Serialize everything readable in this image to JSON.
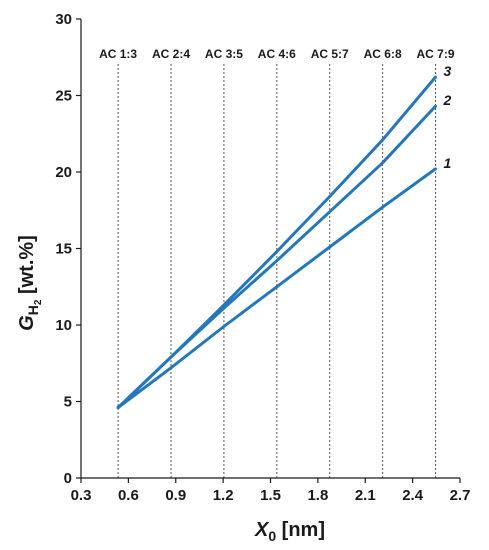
{
  "chart_data": {
    "type": "line",
    "xlabel": {
      "symbol": "X",
      "subscript": "0",
      "unit": " [nm]"
    },
    "ylabel": {
      "symbol": "G",
      "subscript": "H",
      "subsub": "2",
      "unit": " [wt.%]"
    },
    "xlim": [
      0.3,
      2.7
    ],
    "ylim": [
      0,
      30
    ],
    "xticks": [
      "0.3",
      "0.6",
      "0.9",
      "1.2",
      "1.5",
      "1.8",
      "2.1",
      "2.4",
      "2.7"
    ],
    "yticks": [
      "0",
      "5",
      "10",
      "15",
      "20",
      "25",
      "30"
    ],
    "grid": false,
    "line_color": "#2577bd",
    "reference_lines": [
      {
        "label": "AC 1:3",
        "x": 0.535
      },
      {
        "label": "AC 2:4",
        "x": 0.87
      },
      {
        "label": "AC 3:5",
        "x": 1.205
      },
      {
        "label": "AC 4:6",
        "x": 1.54
      },
      {
        "label": "AC 5:7",
        "x": 1.875
      },
      {
        "label": "AC 6:8",
        "x": 2.21
      },
      {
        "label": "AC 7:9",
        "x": 2.545
      }
    ],
    "series": [
      {
        "name": "1",
        "x": [
          0.535,
          0.87,
          1.205,
          1.54,
          1.875,
          2.21,
          2.545
        ],
        "y": [
          4.6,
          7.2,
          9.9,
          12.5,
          15.1,
          17.7,
          20.2
        ]
      },
      {
        "name": "2",
        "x": [
          0.535,
          0.87,
          1.205,
          1.54,
          1.875,
          2.21,
          2.545
        ],
        "y": [
          4.6,
          7.9,
          11.1,
          14.2,
          17.4,
          20.6,
          24.3
        ]
      },
      {
        "name": "3",
        "x": [
          0.535,
          0.87,
          1.205,
          1.54,
          1.875,
          2.21,
          2.545
        ],
        "y": [
          4.6,
          7.9,
          11.3,
          14.8,
          18.4,
          22.1,
          26.2
        ]
      }
    ]
  }
}
